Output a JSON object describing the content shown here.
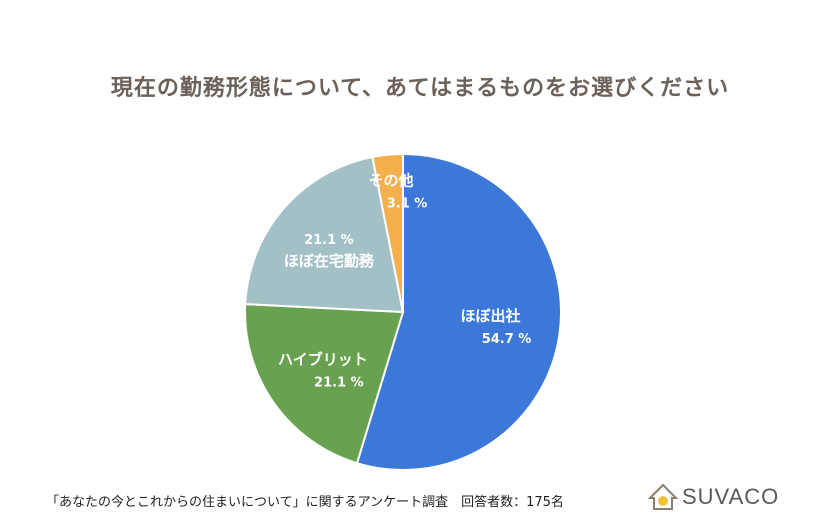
{
  "title": "現在の勤務形態について、あてはまるものをお選びください",
  "chart_data": {
    "type": "pie",
    "slices": [
      {
        "label": "ほぼ出社",
        "value": 54.7,
        "value_label": "54.7 %",
        "color": "#3b78d8"
      },
      {
        "label": "ハイブリット",
        "value": 21.1,
        "value_label": "21.1 %",
        "color": "#68a14f"
      },
      {
        "label": "ほぼ在宅勤務",
        "value": 21.1,
        "value_label": "21.1 %",
        "color": "#a3c0c7"
      },
      {
        "label": "その他",
        "value": 3.1,
        "value_label": "3.1 %",
        "color": "#f3b04c"
      }
    ]
  },
  "footer": "「あなたの今とこれからの住まいについて」に関するアンケート調査　回答者数：175名",
  "logo": {
    "text": "SUVACO",
    "icon": "house-icon"
  }
}
